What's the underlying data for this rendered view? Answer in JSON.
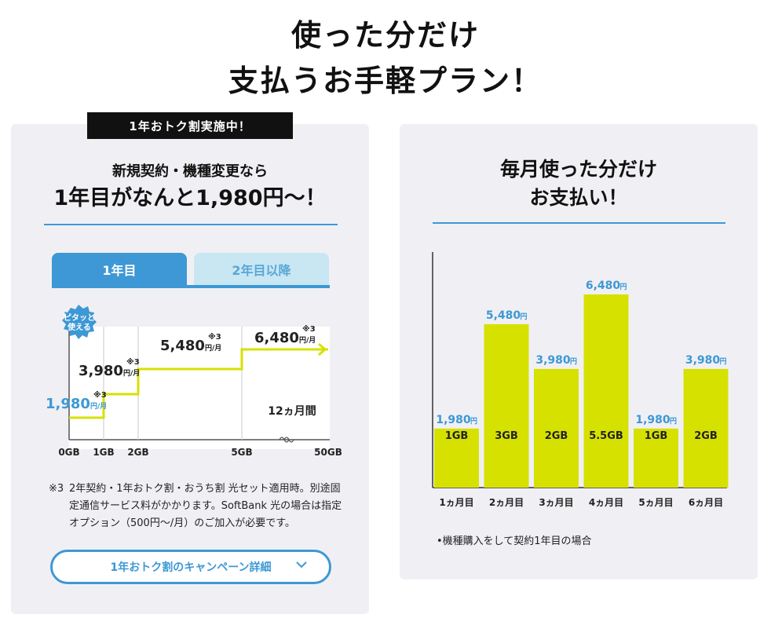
{
  "headline": {
    "line1": "使った分だけ",
    "line2": "支払うお手軽プラン！"
  },
  "left_card": {
    "badge": "1年おトク割実施中！",
    "subtitle": "新規契約・機種変更なら",
    "title": "1年目がなんと1,980円～！",
    "tabs": [
      {
        "label": "1年目",
        "active": true
      },
      {
        "label": "2年目以降",
        "active": false
      }
    ],
    "sticker": {
      "line1": "ピタッと",
      "line2": "使える"
    },
    "period_label": "12ヵ月間",
    "note_mark": "※3",
    "note": "2年契約・1年おトク割・おうち割 光セット適用時。別途固定通信サービス料がかかります。SoftBank 光の場合は指定オプション（500円～/月）のご加入が必要です。",
    "campaign_button": "1年おトク割のキャンペーン詳細"
  },
  "right_card": {
    "title_line1": "毎月使った分だけ",
    "title_line2": "お支払い！",
    "caption": "•機種購入をして契約1年目の場合"
  },
  "chart_data": [
    {
      "type": "line",
      "title": "",
      "x_ticks": [
        "0GB",
        "1GB",
        "2GB",
        "5GB",
        "50GB"
      ],
      "steps": [
        {
          "from": "0GB",
          "to": "1GB",
          "price": "1,980",
          "unit": "円/月",
          "note": "※3"
        },
        {
          "from": "1GB",
          "to": "2GB",
          "price": "3,980",
          "unit": "円/月",
          "note": "※3"
        },
        {
          "from": "2GB",
          "to": "5GB",
          "price": "5,480",
          "unit": "円/月",
          "note": "※3"
        },
        {
          "from": "5GB",
          "to": "50GB",
          "price": "6,480",
          "unit": "円/月",
          "note": "※3"
        }
      ],
      "colors": {
        "line": "#d7e100",
        "price_first": "#3d98d5",
        "grid": "#c8c8c8"
      }
    },
    {
      "type": "bar",
      "title": "",
      "categories": [
        "1ヵ月目",
        "2ヵ月目",
        "3ヵ月目",
        "4ヵ月目",
        "5ヵ月目",
        "6ヵ月目"
      ],
      "values": [
        1980,
        5480,
        3980,
        6480,
        1980,
        3980
      ],
      "value_labels": [
        "1,980",
        "5,480",
        "3,980",
        "6,480",
        "1,980",
        "3,980"
      ],
      "value_unit": "円",
      "usage_labels": [
        "1GB",
        "3GB",
        "2GB",
        "5.5GB",
        "1GB",
        "2GB"
      ],
      "ylim": [
        0,
        7900
      ],
      "colors": {
        "bar": "#d7e100",
        "value_label": "#3d98d5"
      }
    }
  ]
}
